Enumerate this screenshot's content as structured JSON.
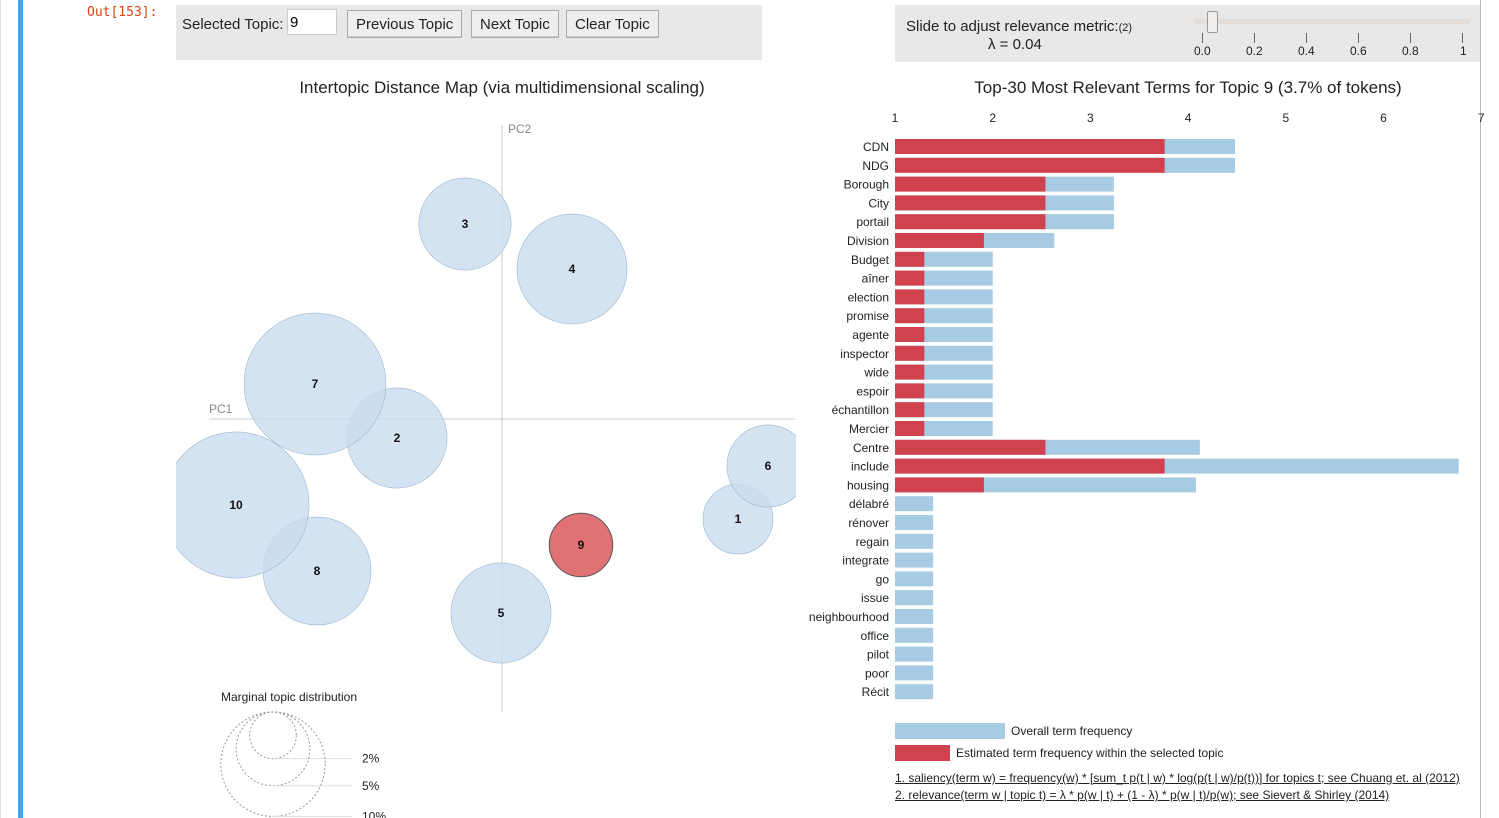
{
  "cell": {
    "prompt": "Out[153]:"
  },
  "controls": {
    "selected_label": "Selected Topic:",
    "selected_value": "9",
    "prev": "Previous Topic",
    "next": "Next Topic",
    "clear": "Clear Topic"
  },
  "slider": {
    "label": "Slide to adjust relevance metric:",
    "label_ref": "(2)",
    "lambda_text": "λ = 0.04",
    "value": 0.04,
    "ticks": [
      "0.0",
      "0.2",
      "0.4",
      "0.6",
      "0.8",
      "1"
    ]
  },
  "colors": {
    "overall": "#a6cbe3",
    "topic": "#d0434e",
    "circle": "#c9dced",
    "circle_selected": "#e07174"
  },
  "chart_data": [
    {
      "type": "scatter",
      "title": "Intertopic Distance Map (via multidimensional scaling)",
      "xlabel": "PC1",
      "ylabel": "PC2",
      "selected": "9",
      "topics": [
        {
          "id": "1",
          "pc1": 0.236,
          "pc2": -0.1,
          "pct": 4.5
        },
        {
          "id": "2",
          "pc1": -0.105,
          "pc2": -0.019,
          "pct": 9.2
        },
        {
          "id": "3",
          "pc1": -0.037,
          "pc2": 0.195,
          "pct": 7.8
        },
        {
          "id": "4",
          "pc1": 0.07,
          "pc2": 0.15,
          "pct": 11.1
        },
        {
          "id": "5",
          "pc1": -0.001,
          "pc2": -0.194,
          "pct": 9.2
        },
        {
          "id": "6",
          "pc1": 0.266,
          "pc2": -0.047,
          "pct": 6.2
        },
        {
          "id": "7",
          "pc1": -0.187,
          "pc2": 0.035,
          "pct": 18.5
        },
        {
          "id": "8",
          "pc1": -0.185,
          "pc2": -0.152,
          "pct": 10.7
        },
        {
          "id": "9",
          "pc1": 0.079,
          "pc2": -0.126,
          "pct": 3.7
        },
        {
          "id": "10",
          "pc1": -0.266,
          "pc2": -0.086,
          "pct": 19.6
        }
      ],
      "legend": {
        "title": "Marginal topic distribution",
        "entries": [
          {
            "label": "2%",
            "pct": 2
          },
          {
            "label": "5%",
            "pct": 5
          },
          {
            "label": "10%",
            "pct": 10
          }
        ]
      }
    },
    {
      "type": "bar",
      "orientation": "horizontal",
      "title": "Top-30 Most Relevant Terms for Topic 9 (3.7% of tokens)",
      "xlim": [
        1,
        7
      ],
      "xticks": [
        "1",
        "2",
        "3",
        "4",
        "5",
        "6",
        "7"
      ],
      "categories": [
        "CDN",
        "NDG",
        "Borough",
        "City",
        "portail",
        "Division",
        "Budget",
        "aîner",
        "election",
        "promise",
        "agente",
        "inspector",
        "wide",
        "espoir",
        "échantillon",
        "Mercier",
        "Centre",
        "include",
        "housing",
        "délabré",
        "rénover",
        "regain",
        "integrate",
        "go",
        "issue",
        "neighbourhood",
        "office",
        "pilot",
        "poor",
        "Récit"
      ],
      "series": [
        {
          "name": "Overall term frequency",
          "values": [
            4.48,
            4.48,
            3.24,
            3.24,
            3.24,
            2.63,
            2.0,
            2.0,
            2.0,
            2.0,
            2.0,
            2.0,
            2.0,
            2.0,
            2.0,
            2.0,
            4.12,
            6.77,
            4.08,
            1.39,
            1.39,
            1.39,
            1.39,
            1.39,
            1.39,
            1.39,
            1.39,
            1.39,
            1.39,
            1.39
          ]
        },
        {
          "name": "Estimated term frequency within the selected topic",
          "values": [
            3.76,
            3.76,
            2.54,
            2.54,
            2.54,
            1.91,
            1.3,
            1.3,
            1.3,
            1.3,
            1.3,
            1.3,
            1.3,
            1.3,
            1.3,
            1.3,
            2.54,
            3.76,
            1.91,
            1,
            1,
            1,
            1,
            1,
            1,
            1,
            1,
            1,
            1,
            1
          ]
        }
      ]
    }
  ],
  "footnotes": [
    "1. saliency(term w) = frequency(w) * [sum_t p(t | w) * log(p(t | w)/p(t))] for topics t; see Chuang et. al (2012)",
    "2. relevance(term w | topic t) = λ * p(w | t) + (1 - λ) * p(w | t)/p(w); see Sievert & Shirley (2014)"
  ]
}
